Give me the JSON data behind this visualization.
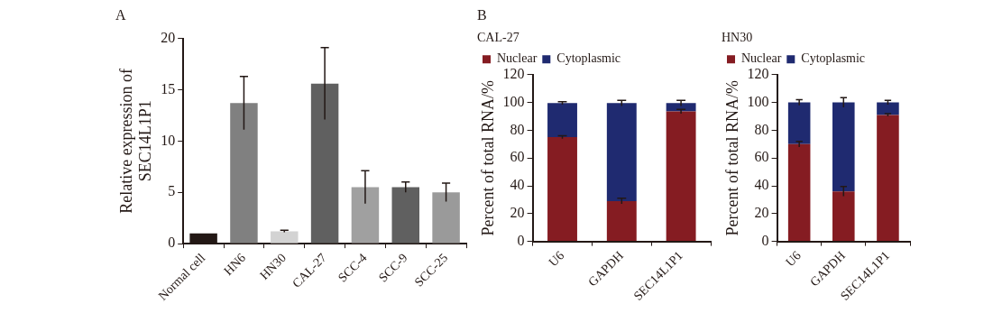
{
  "chart_data": [
    {
      "type": "bar",
      "annotations": [
        "A"
      ],
      "ylabel": "Relative expression of SEC14L1P1",
      "categories": [
        "Normal cell",
        "HN6",
        "HN30",
        "CAL-27",
        "SCC-4",
        "SCC-9",
        "SCC-25"
      ],
      "values": [
        1,
        13.7,
        1.2,
        15.6,
        5.5,
        5.5,
        5.0
      ],
      "errors": [
        null,
        2.6,
        0.1,
        3.5,
        1.6,
        0.5,
        0.9
      ],
      "colors": [
        "#231815",
        "#808080",
        "#d3d3d3",
        "#606060",
        "#a0a0a0",
        "#606060",
        "#9a9a9a"
      ],
      "ylim": [
        0,
        20
      ],
      "yticks": [
        0,
        5,
        10,
        15,
        20
      ],
      "grid": false,
      "legend": false
    },
    {
      "type": "bar",
      "annotations": [
        "B"
      ],
      "title": "CAL-27",
      "ylabel": "Percent of total RNA/%",
      "categories": [
        "U6",
        "GAPDH",
        "SEC14L1P1"
      ],
      "stacked": true,
      "series": [
        {
          "name": "Nuclear",
          "color": "#851c22",
          "values": [
            75,
            29,
            93.5
          ],
          "errors": [
            1,
            2,
            1.5
          ]
        },
        {
          "name": "Cytoplasmic",
          "color": "#1f2a70",
          "values": [
            24.5,
            70.5,
            6
          ],
          "errors": [
            1,
            2,
            2
          ]
        }
      ],
      "ylim": [
        0,
        120
      ],
      "yticks": [
        0,
        20,
        40,
        60,
        80,
        100,
        120
      ],
      "grid": false,
      "legend": "top left"
    },
    {
      "type": "bar",
      "title": "HN30",
      "ylabel": "Percent of total RNA/%",
      "categories": [
        "U6",
        "GAPDH",
        "SEC14L1P1"
      ],
      "stacked": true,
      "series": [
        {
          "name": "Nuclear",
          "color": "#851c22",
          "values": [
            70,
            36,
            91
          ],
          "errors": [
            2,
            3.5,
            1
          ]
        },
        {
          "name": "Cytoplasmic",
          "color": "#1f2a70",
          "values": [
            30,
            64,
            9
          ],
          "errors": [
            2,
            3.5,
            1.5
          ]
        }
      ],
      "ylim": [
        0,
        120
      ],
      "yticks": [
        0,
        20,
        40,
        60,
        80,
        100,
        120
      ],
      "grid": false,
      "legend": "top left"
    }
  ]
}
